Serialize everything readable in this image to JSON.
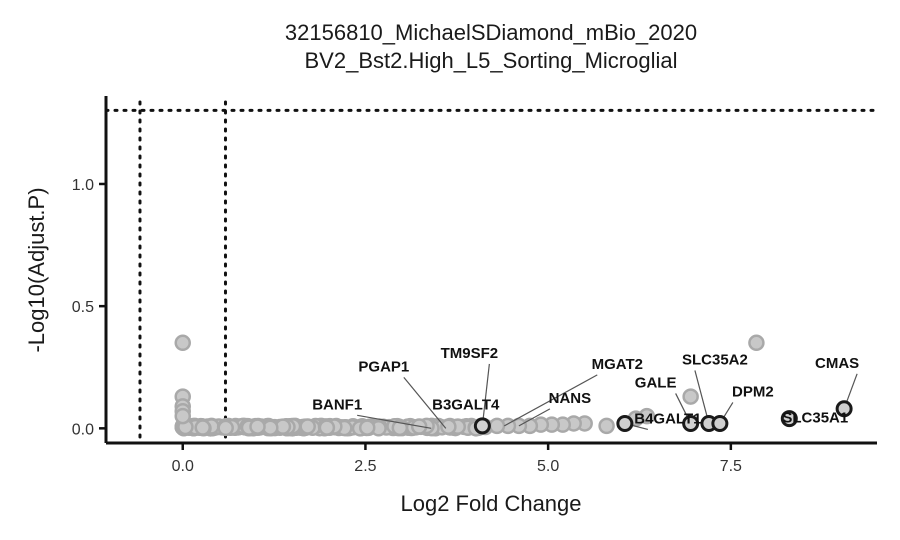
{
  "chart_data": {
    "type": "scatter",
    "title": "32156810_MichaelSDiamond_mBio_2020",
    "subtitle": "BV2_Bst2.High_L5_Sorting_Microglial",
    "xlabel": "Log2 Fold Change",
    "ylabel": "-Log10(Adjust.P)",
    "xlim": [
      -1.05,
      9.5
    ],
    "ylim": [
      -0.06,
      1.36
    ],
    "x_ticks": [
      {
        "value": 0,
        "label": "0.0"
      },
      {
        "value": 2.5,
        "label": "2.5"
      },
      {
        "value": 5,
        "label": "5.0"
      },
      {
        "value": 7.5,
        "label": "7.5"
      }
    ],
    "y_ticks": [
      {
        "value": 0,
        "label": "0.0"
      },
      {
        "value": 0.5,
        "label": "0.5"
      },
      {
        "value": 1,
        "label": "1.0"
      }
    ],
    "threshold_lines": {
      "x": [
        -0.585,
        0.585
      ],
      "y": 1.301
    },
    "grid": false,
    "colors": {
      "background_points": "#c8c8c8",
      "background_stroke": "#a9a9a9",
      "highlight_stroke": "#1a1a1a",
      "axis": "#111111"
    },
    "series": [
      {
        "points": [
          [
            0,
            0.35
          ],
          [
            0,
            0.13
          ],
          [
            0,
            0.09
          ],
          [
            0,
            0.07
          ],
          [
            0,
            0.05
          ],
          [
            7.85,
            0.35
          ],
          [
            6.95,
            0.13
          ],
          [
            6.35,
            0.05
          ],
          [
            6.2,
            0.04
          ],
          [
            5.5,
            0.02
          ],
          [
            5.35,
            0.02
          ],
          [
            5.2,
            0.015
          ],
          [
            5.05,
            0.015
          ],
          [
            4.9,
            0.015
          ],
          [
            4.75,
            0.01
          ],
          [
            4.6,
            0.01
          ],
          [
            4.45,
            0.01
          ],
          [
            4.3,
            0.01
          ],
          [
            5.8,
            0.01
          ]
        ]
      },
      {
        "points": [
          [
            4.1,
            0.01
          ],
          [
            6.05,
            0.02
          ],
          [
            6.95,
            0.02
          ],
          [
            7.2,
            0.02
          ],
          [
            7.35,
            0.02
          ],
          [
            8.3,
            0.04
          ],
          [
            9.05,
            0.08
          ]
        ]
      }
    ],
    "labels": [
      {
        "text": "PGAP1",
        "x": 3.6,
        "y": 0.0
      },
      {
        "text": "BANF1",
        "x": 3.4,
        "y": 0.0
      },
      {
        "text": "TM9SF2",
        "x": 4.1,
        "y": 0.01
      },
      {
        "text": "B3GALT4",
        "x": 3.9,
        "y": 0.0
      },
      {
        "text": "MGAT2",
        "x": 4.4,
        "y": 0.01
      },
      {
        "text": "NANS",
        "x": 4.6,
        "y": 0.01
      },
      {
        "text": "GALE",
        "x": 6.95,
        "y": 0.02
      },
      {
        "text": "B4GALT1",
        "x": 6.05,
        "y": 0.02
      },
      {
        "text": "SLC35A2",
        "x": 7.2,
        "y": 0.02
      },
      {
        "text": "DPM2",
        "x": 7.35,
        "y": 0.02
      },
      {
        "text": "CMAS",
        "x": 9.05,
        "y": 0.08
      },
      {
        "text": "SLC35A1",
        "x": 8.3,
        "y": 0.04
      }
    ]
  }
}
